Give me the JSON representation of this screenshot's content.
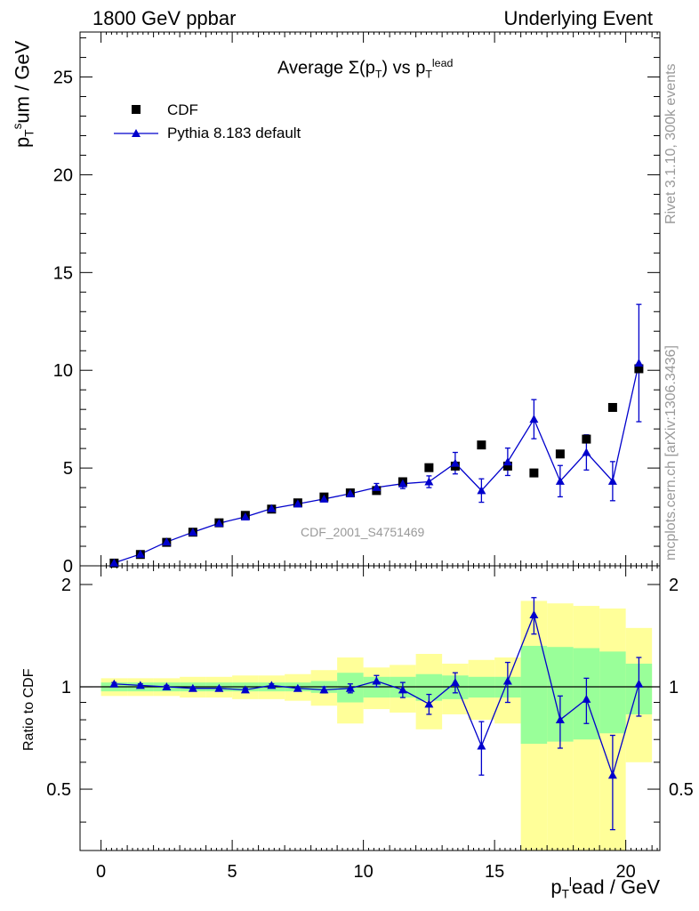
{
  "header": {
    "left": "1800 GeV ppbar",
    "right": "Underlying Event"
  },
  "side_labels": {
    "rivet": "Rivet 3.1.10,  300k events",
    "mcplots": "mcplots.cern.ch [arXiv:1306.3436]"
  },
  "watermark": "CDF_2001_S4751469",
  "colors": {
    "mc": "#0000cc",
    "band_inner": "#99ff99",
    "band_outer": "#ffff99",
    "data": "#000000"
  },
  "chart_data": [
    {
      "type": "scatter",
      "title": "Average Σ(pT) vs pTlead",
      "title_parts": {
        "main": "Average ",
        "sigma": "Σ(p",
        "sub1": "T",
        "close": ")",
        "vs": " vs p",
        "sub2": "T",
        "sup2": "lead"
      },
      "ylabel_parts": {
        "p": "p",
        "sub": "T",
        "sup": "s",
        "rest": "um / GeV"
      },
      "xlim": [
        -0.8,
        21.3
      ],
      "ylim": [
        0,
        27.3
      ],
      "yticks": [
        0,
        5,
        10,
        15,
        20,
        25
      ],
      "ytick_labels": [
        "0",
        "5",
        "10",
        "15",
        "20",
        "25"
      ],
      "legend": [
        "CDF",
        "Pythia 8.183 default"
      ],
      "series": [
        {
          "name": "CDF",
          "x": [
            0.5,
            1.5,
            2.5,
            3.5,
            4.5,
            5.5,
            6.5,
            7.5,
            8.5,
            9.5,
            10.5,
            11.5,
            12.5,
            13.5,
            14.5,
            15.5,
            16.5,
            17.5,
            18.5,
            19.5,
            20.5
          ],
          "y": [
            0.14,
            0.58,
            1.2,
            1.72,
            2.2,
            2.58,
            2.9,
            3.22,
            3.52,
            3.73,
            3.85,
            4.3,
            5.02,
            5.1,
            6.18,
            5.1,
            4.75,
            5.72,
            6.48,
            8.1,
            10.08
          ]
        },
        {
          "name": "Pythia 8.183 default",
          "x": [
            0.5,
            1.5,
            2.5,
            3.5,
            4.5,
            5.5,
            6.5,
            7.5,
            8.5,
            9.5,
            10.5,
            11.5,
            12.5,
            13.5,
            14.5,
            15.5,
            16.5,
            17.5,
            18.5,
            19.5,
            20.5
          ],
          "y": [
            0.15,
            0.6,
            1.22,
            1.72,
            2.18,
            2.5,
            2.93,
            3.17,
            3.42,
            3.69,
            4.01,
            4.2,
            4.3,
            5.25,
            3.85,
            5.32,
            7.5,
            4.33,
            5.8,
            4.33,
            10.37
          ],
          "err": [
            0,
            0,
            0,
            0,
            0,
            0,
            0,
            0,
            0.05,
            0.1,
            0.2,
            0.25,
            0.3,
            0.55,
            0.6,
            0.7,
            1.0,
            0.8,
            0.9,
            1.0,
            3.0
          ]
        }
      ]
    },
    {
      "type": "scatter",
      "ylabel": "Ratio to CDF",
      "xlabel_parts": {
        "p": "p",
        "sub": "T",
        "sup": "l",
        "rest": "ead / GeV"
      },
      "xlim": [
        -0.8,
        21.3
      ],
      "ylim": [
        0.33,
        2.27
      ],
      "xticks": [
        0,
        5,
        10,
        15,
        20
      ],
      "xtick_labels": [
        "0",
        "5",
        "10",
        "15",
        "20"
      ],
      "yticks": [
        0.5,
        1,
        2
      ],
      "ytick_labels": [
        "0.5",
        "1",
        "2"
      ],
      "bands": {
        "x_edges": [
          0,
          1,
          2,
          3,
          4,
          5,
          6,
          7,
          8,
          9,
          10,
          11,
          12,
          13,
          14,
          15,
          16,
          17,
          18,
          19,
          20,
          21
        ],
        "inner_lo": [
          0.97,
          0.97,
          0.97,
          0.97,
          0.97,
          0.97,
          0.97,
          0.97,
          0.96,
          0.9,
          0.93,
          0.93,
          0.91,
          0.92,
          0.93,
          0.93,
          0.68,
          0.69,
          0.7,
          0.73,
          0.83
        ],
        "inner_hi": [
          1.03,
          1.03,
          1.03,
          1.03,
          1.03,
          1.03,
          1.03,
          1.03,
          1.04,
          1.1,
          1.07,
          1.07,
          1.09,
          1.08,
          1.07,
          1.07,
          1.32,
          1.31,
          1.3,
          1.27,
          1.17
        ],
        "outer_lo": [
          0.94,
          0.94,
          0.94,
          0.93,
          0.93,
          0.92,
          0.92,
          0.91,
          0.88,
          0.78,
          0.86,
          0.84,
          0.75,
          0.83,
          0.8,
          0.78,
          0.33,
          0.33,
          0.33,
          0.33,
          0.6
        ],
        "outer_hi": [
          1.06,
          1.06,
          1.06,
          1.07,
          1.07,
          1.08,
          1.08,
          1.09,
          1.12,
          1.22,
          1.14,
          1.16,
          1.25,
          1.17,
          1.2,
          1.22,
          1.79,
          1.76,
          1.73,
          1.7,
          1.49
        ]
      },
      "series": [
        {
          "name": "Pythia 8.183 default / CDF",
          "x": [
            0.5,
            1.5,
            2.5,
            3.5,
            4.5,
            5.5,
            6.5,
            7.5,
            8.5,
            9.5,
            10.5,
            11.5,
            12.5,
            13.5,
            14.5,
            15.5,
            16.5,
            17.5,
            18.5,
            19.5,
            20.5
          ],
          "y": [
            1.02,
            1.01,
            1.0,
            0.99,
            0.99,
            0.98,
            1.01,
            0.99,
            0.98,
            0.99,
            1.04,
            0.98,
            0.89,
            1.03,
            0.67,
            1.04,
            1.63,
            0.8,
            0.92,
            0.55,
            1.02
          ],
          "err": [
            0.01,
            0.01,
            0.01,
            0.01,
            0.01,
            0.01,
            0.01,
            0.01,
            0.02,
            0.03,
            0.04,
            0.05,
            0.06,
            0.07,
            0.12,
            0.14,
            0.2,
            0.14,
            0.14,
            0.17,
            0.2
          ]
        }
      ]
    }
  ]
}
